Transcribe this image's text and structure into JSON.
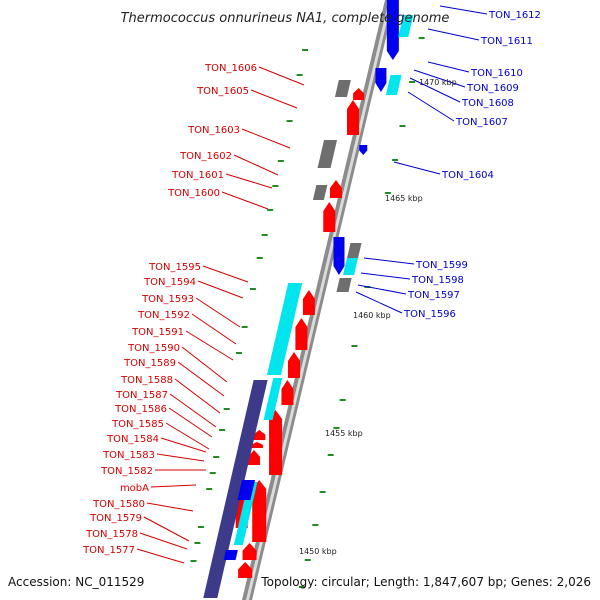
{
  "title": "Thermococcus onnurineus NA1, complete genome",
  "footer": {
    "accession": "Accession: NC_011529",
    "summary": "Topology: circular; Length: 1,847,607 bp; Genes: 2,026"
  },
  "kbp_labels": [
    "1470 kbp",
    "1465 kbp",
    "1460 kbp",
    "1455 kbp",
    "1450 kbp"
  ],
  "left_labels": [
    "TON_1606",
    "TON_1605",
    "TON_1603",
    "TON_1602",
    "TON_1601",
    "TON_1600",
    "TON_1595",
    "TON_1594",
    "TON_1593",
    "TON_1592",
    "TON_1591",
    "TON_1590",
    "TON_1589",
    "TON_1588",
    "TON_1587",
    "TON_1586",
    "TON_1585",
    "TON_1584",
    "TON_1583",
    "TON_1582",
    "mobA",
    "TON_1580",
    "TON_1579",
    "TON_1578",
    "TON_1577"
  ],
  "right_labels": [
    "TON_1612",
    "TON_1611",
    "TON_1610",
    "TON_1609",
    "TON_1608",
    "TON_1607",
    "TON_1604",
    "TON_1599",
    "TON_1598",
    "TON_1597",
    "TON_1596"
  ],
  "colors": {
    "forward_label": "#d40000",
    "reverse_label": "#0000cc",
    "forward_feature": "#ff0000",
    "reverse_feature": "#0000ee",
    "rna_feature": "#00e5ee",
    "other_feature": "#6e6e6e",
    "backbone": "#8c8c8c",
    "tick": "#228b22"
  }
}
